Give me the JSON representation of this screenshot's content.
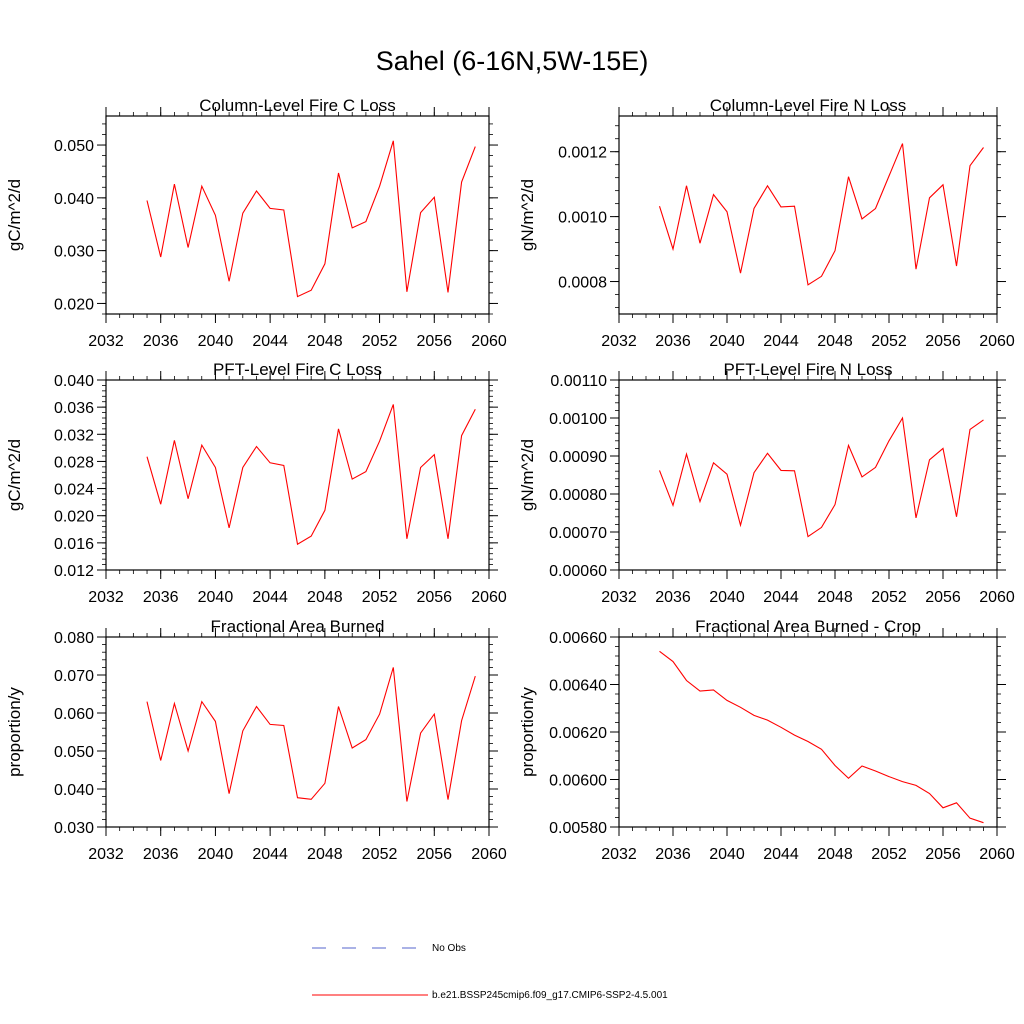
{
  "title": "Sahel (6-16N,5W-15E)",
  "colors": {
    "series": "#ff0000",
    "obs": "#5566cc",
    "axis": "#000000"
  },
  "legend": {
    "items": [
      {
        "label": "No Obs",
        "style": "dashed",
        "color": "#5566cc"
      },
      {
        "label": "b.e21.BSSP245cmip6.f09_g17.CMIP6-SSP2-4.5.001",
        "style": "solid",
        "color": "#ff0000"
      }
    ]
  },
  "chart_data": [
    {
      "type": "line",
      "title": "Column-Level Fire C Loss",
      "ylabel": "gC/m^2/d",
      "xlim": [
        2032,
        2060
      ],
      "xticks": [
        "2032",
        "2036",
        "2040",
        "2044",
        "2048",
        "2052",
        "2056",
        "2060"
      ],
      "ylim": [
        0.018,
        0.0555
      ],
      "yticks": [
        "0.020",
        "0.030",
        "0.040",
        "0.050"
      ],
      "x": [
        2035,
        2036,
        2037,
        2038,
        2039,
        2040,
        2041,
        2042,
        2043,
        2044,
        2045,
        2046,
        2047,
        2048,
        2049,
        2050,
        2051,
        2052,
        2053,
        2054,
        2055,
        2056,
        2057,
        2058,
        2059
      ],
      "series": [
        {
          "values": [
            0.0395,
            0.0288,
            0.0426,
            0.0306,
            0.0422,
            0.0367,
            0.0242,
            0.0371,
            0.0413,
            0.038,
            0.0377,
            0.0213,
            0.0225,
            0.0275,
            0.0447,
            0.0343,
            0.0355,
            0.0422,
            0.0508,
            0.0222,
            0.0372,
            0.0401,
            0.0221,
            0.043,
            0.0497
          ]
        }
      ]
    },
    {
      "type": "line",
      "title": "Column-Level Fire N Loss",
      "ylabel": "gN/m^2/d",
      "xlim": [
        2032,
        2060
      ],
      "xticks": [
        "2032",
        "2036",
        "2040",
        "2044",
        "2048",
        "2052",
        "2056",
        "2060"
      ],
      "ylim": [
        0.0007,
        0.00131
      ],
      "yticks": [
        "0.0008",
        "0.0010",
        "0.0012"
      ],
      "x": [
        2035,
        2036,
        2037,
        2038,
        2039,
        2040,
        2041,
        2042,
        2043,
        2044,
        2045,
        2046,
        2047,
        2048,
        2049,
        2050,
        2051,
        2052,
        2053,
        2054,
        2055,
        2056,
        2057,
        2058,
        2059
      ],
      "series": [
        {
          "values": [
            0.001032,
            0.0009,
            0.001095,
            0.000918,
            0.001068,
            0.001015,
            0.000826,
            0.001025,
            0.001095,
            0.00103,
            0.001032,
            0.00079,
            0.000816,
            0.000895,
            0.001123,
            0.000993,
            0.001025,
            0.001125,
            0.001225,
            0.000838,
            0.001058,
            0.001098,
            0.000848,
            0.001157,
            0.001213
          ]
        }
      ]
    },
    {
      "type": "line",
      "title": "PFT-Level Fire C Loss",
      "ylabel": "gC/m^2/d",
      "xlim": [
        2032,
        2060
      ],
      "xticks": [
        "2032",
        "2036",
        "2040",
        "2044",
        "2048",
        "2052",
        "2056",
        "2060"
      ],
      "ylim": [
        0.012,
        0.04
      ],
      "yticks": [
        "0.012",
        "0.016",
        "0.020",
        "0.024",
        "0.028",
        "0.032",
        "0.036",
        "0.040"
      ],
      "x": [
        2035,
        2036,
        2037,
        2038,
        2039,
        2040,
        2041,
        2042,
        2043,
        2044,
        2045,
        2046,
        2047,
        2048,
        2049,
        2050,
        2051,
        2052,
        2053,
        2054,
        2055,
        2056,
        2057,
        2058,
        2059
      ],
      "series": [
        {
          "values": [
            0.0287,
            0.0217,
            0.0311,
            0.0225,
            0.0304,
            0.0271,
            0.0182,
            0.0271,
            0.0302,
            0.0278,
            0.0274,
            0.0158,
            0.017,
            0.0208,
            0.0328,
            0.0254,
            0.0265,
            0.031,
            0.0364,
            0.0166,
            0.0271,
            0.029,
            0.0166,
            0.0318,
            0.0357
          ]
        }
      ]
    },
    {
      "type": "line",
      "title": "PFT-Level Fire N Loss",
      "ylabel": "gN/m^2/d",
      "xlim": [
        2032,
        2060
      ],
      "xticks": [
        "2032",
        "2036",
        "2040",
        "2044",
        "2048",
        "2052",
        "2056",
        "2060"
      ],
      "ylim": [
        0.0006,
        0.0011
      ],
      "yticks": [
        "0.00060",
        "0.00070",
        "0.00080",
        "0.00090",
        "0.00100",
        "0.00110"
      ],
      "x": [
        2035,
        2036,
        2037,
        2038,
        2039,
        2040,
        2041,
        2042,
        2043,
        2044,
        2045,
        2046,
        2047,
        2048,
        2049,
        2050,
        2051,
        2052,
        2053,
        2054,
        2055,
        2056,
        2057,
        2058,
        2059
      ],
      "series": [
        {
          "values": [
            0.000862,
            0.00077,
            0.000905,
            0.00078,
            0.000882,
            0.000852,
            0.000718,
            0.000856,
            0.000907,
            0.000862,
            0.000861,
            0.000688,
            0.000712,
            0.000772,
            0.000928,
            0.000845,
            0.00087,
            0.00094,
            0.001,
            0.000737,
            0.00089,
            0.00092,
            0.00074,
            0.00097,
            0.000995
          ]
        }
      ]
    },
    {
      "type": "line",
      "title": "Fractional Area Burned",
      "ylabel": "proportion/y",
      "xlim": [
        2032,
        2060
      ],
      "xticks": [
        "2032",
        "2036",
        "2040",
        "2044",
        "2048",
        "2052",
        "2056",
        "2060"
      ],
      "ylim": [
        0.03,
        0.08
      ],
      "yticks": [
        "0.030",
        "0.040",
        "0.050",
        "0.060",
        "0.070",
        "0.080"
      ],
      "x": [
        2035,
        2036,
        2037,
        2038,
        2039,
        2040,
        2041,
        2042,
        2043,
        2044,
        2045,
        2046,
        2047,
        2048,
        2049,
        2050,
        2051,
        2052,
        2053,
        2054,
        2055,
        2056,
        2057,
        2058,
        2059
      ],
      "series": [
        {
          "values": [
            0.063,
            0.0475,
            0.0625,
            0.05,
            0.063,
            0.0578,
            0.0388,
            0.0553,
            0.0617,
            0.057,
            0.0567,
            0.0377,
            0.0373,
            0.0415,
            0.0617,
            0.0508,
            0.053,
            0.0597,
            0.072,
            0.0367,
            0.0547,
            0.0597,
            0.0372,
            0.058,
            0.0697
          ]
        }
      ]
    },
    {
      "type": "line",
      "title": "Fractional Area Burned - Crop",
      "ylabel": "proportion/y",
      "xlim": [
        2032,
        2060
      ],
      "xticks": [
        "2032",
        "2036",
        "2040",
        "2044",
        "2048",
        "2052",
        "2056",
        "2060"
      ],
      "ylim": [
        0.0058,
        0.0066
      ],
      "yticks": [
        "0.00580",
        "0.00600",
        "0.00620",
        "0.00640",
        "0.00660"
      ],
      "x": [
        2035,
        2036,
        2037,
        2038,
        2039,
        2040,
        2041,
        2042,
        2043,
        2044,
        2045,
        2046,
        2047,
        2048,
        2049,
        2050,
        2051,
        2052,
        2053,
        2054,
        2055,
        2056,
        2057,
        2058,
        2059
      ],
      "series": [
        {
          "values": [
            0.00654,
            0.006497,
            0.006417,
            0.006372,
            0.006377,
            0.006333,
            0.006304,
            0.00627,
            0.00625,
            0.00622,
            0.006187,
            0.00616,
            0.006127,
            0.006059,
            0.006005,
            0.006057,
            0.006036,
            0.006012,
            0.005991,
            0.005975,
            0.005941,
            0.005881,
            0.005902,
            0.005837,
            0.005818
          ]
        }
      ]
    }
  ]
}
